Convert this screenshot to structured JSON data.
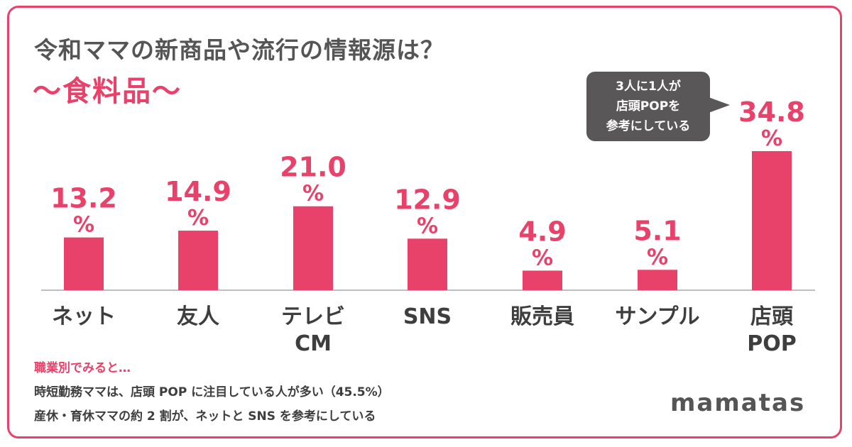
{
  "chart_data": {
    "type": "bar",
    "title": "令和ママの新商品や流行の情報源は？",
    "subtitle": "〜食料品〜",
    "categories": [
      [
        "ネット"
      ],
      [
        "友人"
      ],
      [
        "テレビ",
        "CM"
      ],
      [
        "SNS"
      ],
      [
        "販売員"
      ],
      [
        "サンプル"
      ],
      [
        "店頭",
        "POP"
      ]
    ],
    "values": [
      13.2,
      14.9,
      21.0,
      12.9,
      4.9,
      5.1,
      34.8
    ],
    "value_labels": [
      "13.2",
      "14.9",
      "21.0",
      "12.9",
      "4.9",
      "5.1",
      "34.8"
    ],
    "unit": "%",
    "ylim": [
      0,
      34.8
    ],
    "grid": false,
    "bar_color": "#e8416a",
    "label_color": "#e8416a",
    "axis_color": "#bdbdbd"
  },
  "callout": {
    "lines": [
      "3人に1人が",
      "店頭POPを",
      "参考にしている"
    ]
  },
  "notes": {
    "heading": "職業別でみると…",
    "lines": [
      "時短勤務ママは、店頭 POP に注目している人が多い（45.5%）",
      "産休・育休ママの約 2 割が、ネットと SNS を参考にしている"
    ]
  },
  "brand": {
    "logo": "mamatas"
  },
  "colors": {
    "accent": "#e8416a",
    "text": "#555555",
    "callout_bg": "#595757"
  }
}
